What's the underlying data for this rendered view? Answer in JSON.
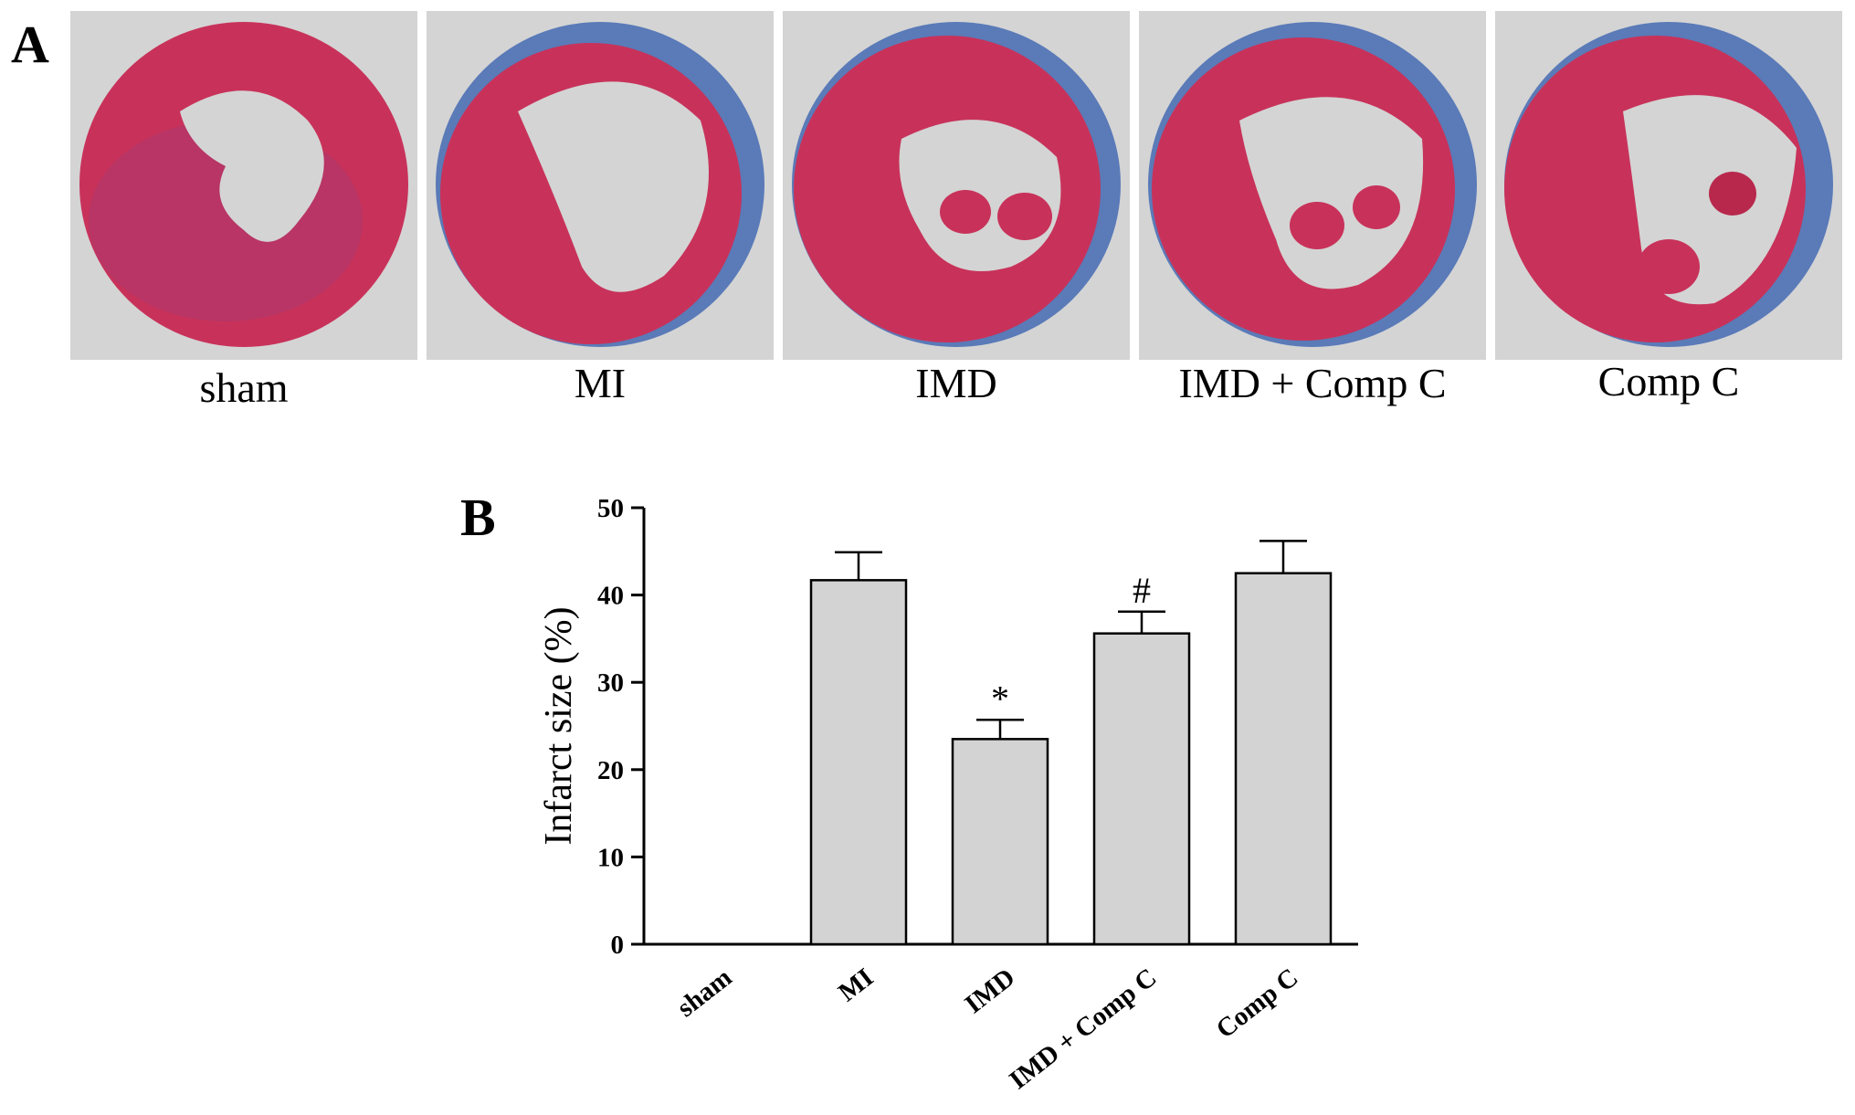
{
  "panel_a": {
    "letter": "A",
    "images": [
      {
        "label": "sham"
      },
      {
        "label": "MI"
      },
      {
        "label": "IMD"
      },
      {
        "label": "IMD + Comp C"
      },
      {
        "label": "Comp C"
      }
    ]
  },
  "panel_b": {
    "letter": "B"
  },
  "chart_data": {
    "type": "bar",
    "categories": [
      "sham",
      "MI",
      "IMD",
      "IMD + Comp C",
      "Comp C"
    ],
    "values": [
      0,
      41.7,
      23.5,
      35.6,
      42.5
    ],
    "errors": [
      0,
      3.2,
      2.2,
      2.5,
      3.7
    ],
    "annotations": [
      "",
      "",
      "*",
      "#",
      ""
    ],
    "title": "",
    "xlabel": "",
    "ylabel": "Infarct size (%)",
    "ylim": [
      0,
      50
    ],
    "yticks": [
      0,
      10,
      20,
      30,
      40,
      50
    ],
    "grid": false,
    "bar_color": "#d3d3d3"
  }
}
